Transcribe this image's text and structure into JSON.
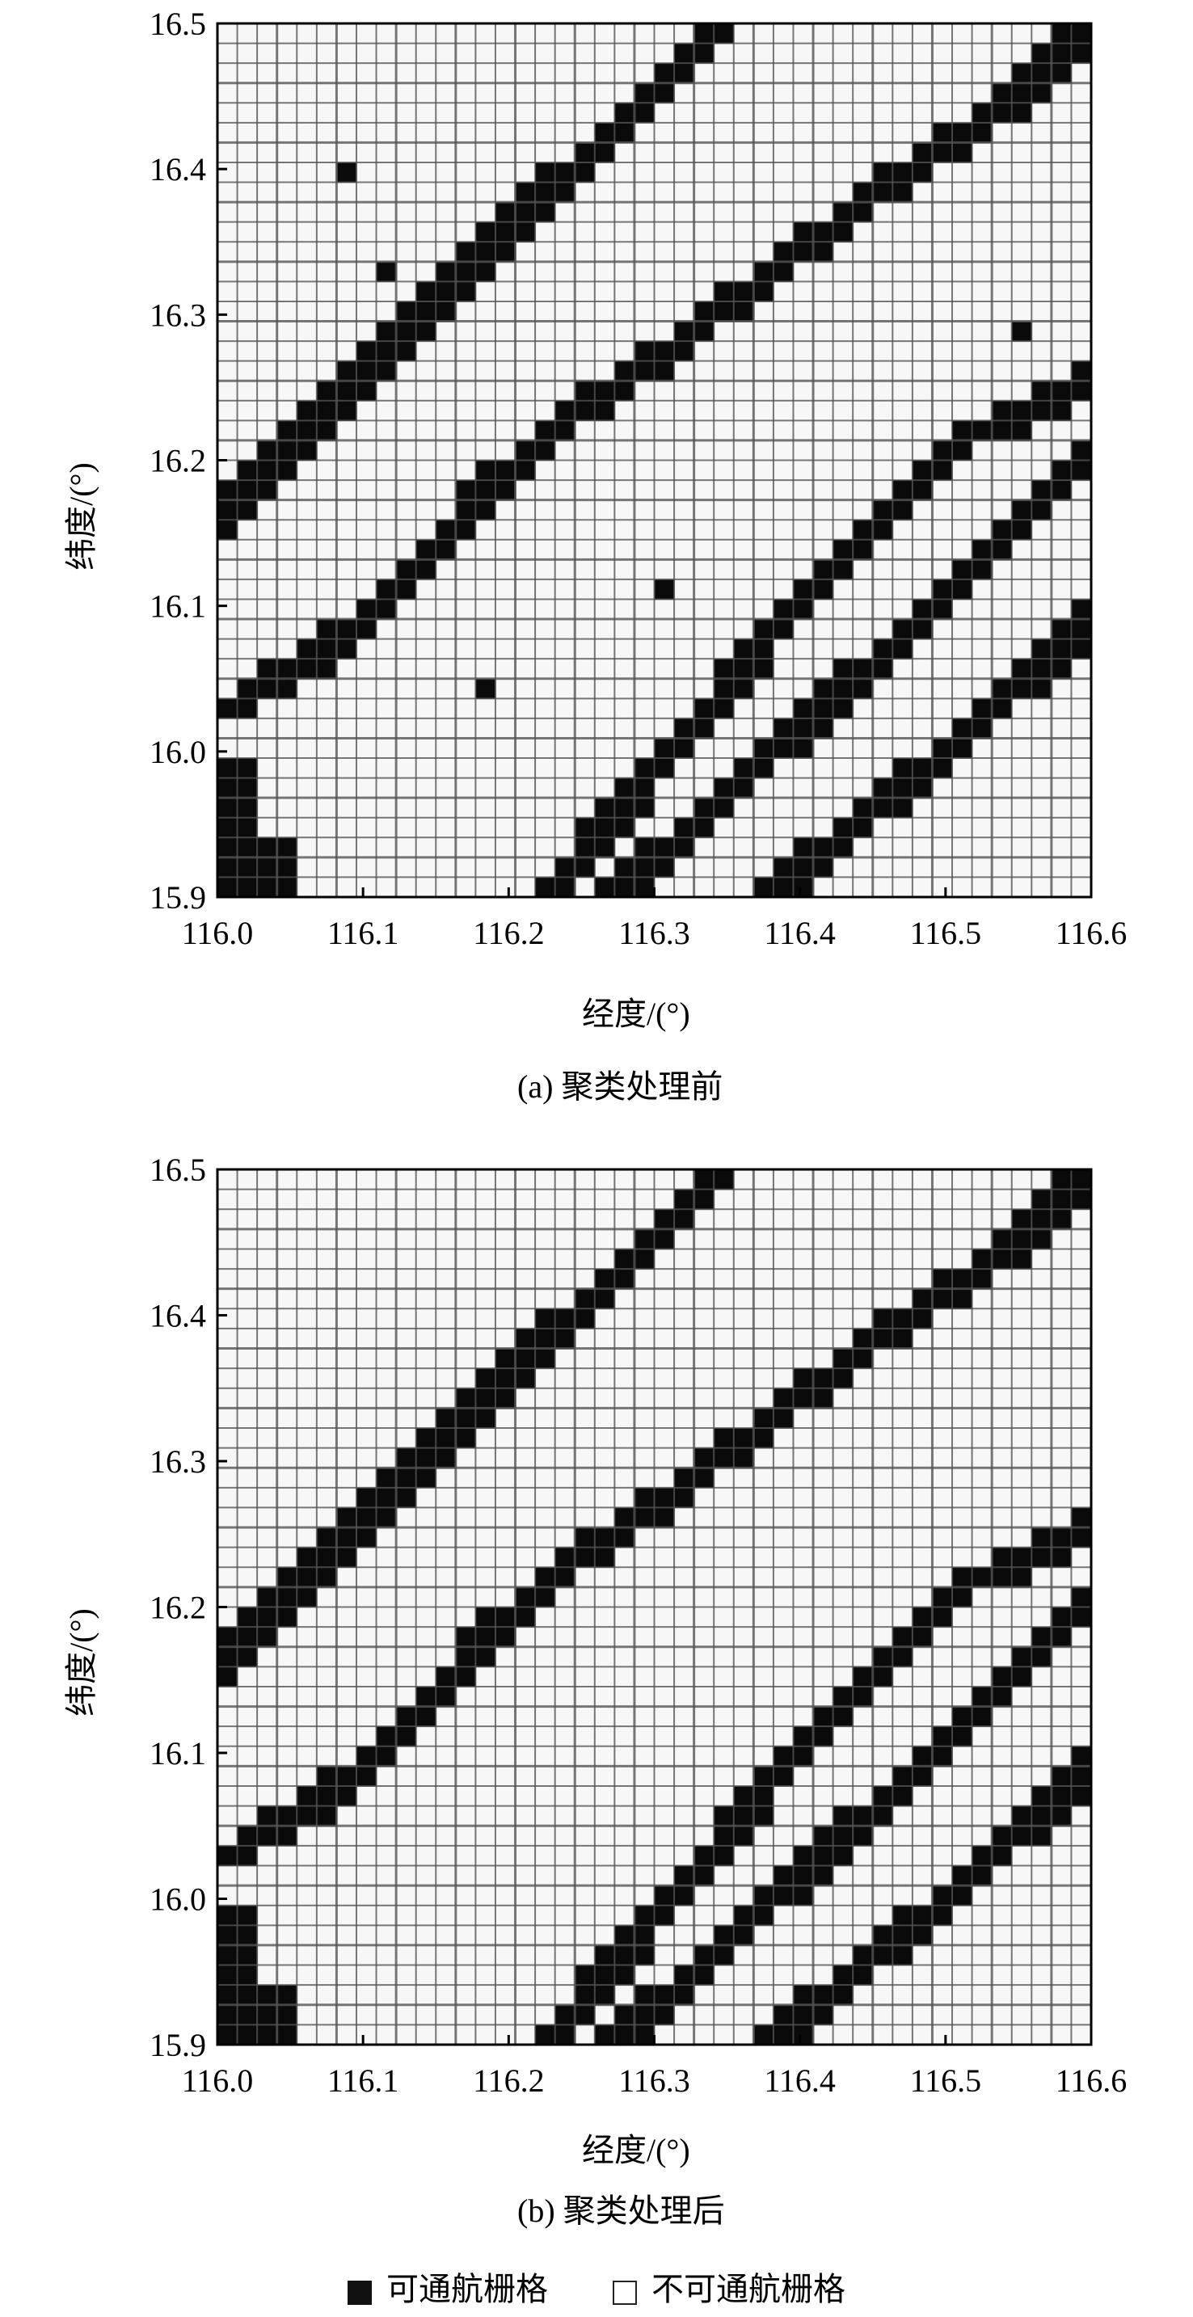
{
  "chart_data": [
    {
      "type": "heatmap",
      "caption": "(a) 聚类处理前",
      "xlabel": "经度/(°)",
      "ylabel": "纬度/(°)",
      "xlim": [
        116.0,
        116.6
      ],
      "ylim": [
        15.9,
        16.5
      ],
      "xticks": [
        "116.0",
        "116.1",
        "116.2",
        "116.3",
        "116.4",
        "116.5",
        "116.6"
      ],
      "yticks": [
        "15.9",
        "16.0",
        "16.1",
        "16.2",
        "16.3",
        "16.4",
        "16.5"
      ],
      "grid": true,
      "grid_cells": 44,
      "navigable_channels": [
        [
          [
            116.0,
            16.16
          ],
          [
            116.1,
            16.26
          ],
          [
            116.2,
            16.36
          ],
          [
            116.3,
            16.45
          ],
          [
            116.35,
            16.5
          ]
        ],
        [
          [
            116.013,
            16.03
          ],
          [
            116.105,
            16.09
          ],
          [
            116.186,
            16.18
          ],
          [
            116.257,
            16.24
          ],
          [
            116.358,
            16.31
          ],
          [
            116.46,
            16.39
          ],
          [
            116.55,
            16.45
          ],
          [
            116.6,
            16.5
          ]
        ],
        [
          [
            116.226,
            15.9
          ],
          [
            116.39,
            16.09
          ],
          [
            116.52,
            16.22
          ],
          [
            116.55,
            16.225
          ],
          [
            116.6,
            16.257
          ]
        ],
        [
          [
            116.272,
            15.9
          ],
          [
            116.45,
            16.06
          ],
          [
            116.6,
            16.21
          ]
        ],
        [
          [
            116.379,
            15.9
          ],
          [
            116.45,
            15.96
          ],
          [
            116.5,
            15.998
          ],
          [
            116.6,
            16.09
          ]
        ]
      ],
      "navigable_regions": [
        [
          116.0,
          15.9,
          116.03,
          16.0
        ],
        [
          116.03,
          15.9,
          116.06,
          15.94
        ]
      ],
      "isolated_navigable_cells": [
        [
          116.082,
          16.404
        ],
        [
          116.121,
          16.327
        ],
        [
          116.308,
          16.117
        ],
        [
          116.188,
          16.042
        ],
        [
          116.549,
          16.283
        ]
      ],
      "colors": {
        "navigable": "#0a0a0a",
        "non_navigable": "#f7f7f7",
        "grid": "#555555"
      }
    },
    {
      "type": "heatmap",
      "caption": "(b) 聚类处理后",
      "xlabel": "经度/(°)",
      "ylabel": "纬度/(°)",
      "xlim": [
        116.0,
        116.6
      ],
      "ylim": [
        15.9,
        16.5
      ],
      "xticks": [
        "116.0",
        "116.1",
        "116.2",
        "116.3",
        "116.4",
        "116.5",
        "116.6"
      ],
      "yticks": [
        "15.9",
        "16.0",
        "16.1",
        "16.2",
        "16.3",
        "16.4",
        "16.5"
      ],
      "grid": true,
      "grid_cells": 44,
      "navigable_channels": [
        [
          [
            116.0,
            16.16
          ],
          [
            116.1,
            16.26
          ],
          [
            116.2,
            16.36
          ],
          [
            116.3,
            16.45
          ],
          [
            116.35,
            16.5
          ]
        ],
        [
          [
            116.013,
            16.03
          ],
          [
            116.105,
            16.09
          ],
          [
            116.186,
            16.18
          ],
          [
            116.257,
            16.24
          ],
          [
            116.358,
            16.31
          ],
          [
            116.46,
            16.39
          ],
          [
            116.55,
            16.45
          ],
          [
            116.6,
            16.5
          ]
        ],
        [
          [
            116.226,
            15.9
          ],
          [
            116.39,
            16.09
          ],
          [
            116.52,
            16.22
          ],
          [
            116.55,
            16.225
          ],
          [
            116.6,
            16.257
          ]
        ],
        [
          [
            116.272,
            15.9
          ],
          [
            116.45,
            16.06
          ],
          [
            116.6,
            16.21
          ]
        ],
        [
          [
            116.379,
            15.9
          ],
          [
            116.45,
            15.96
          ],
          [
            116.5,
            15.998
          ],
          [
            116.6,
            16.09
          ]
        ]
      ],
      "navigable_regions": [
        [
          116.0,
          15.9,
          116.03,
          16.0
        ],
        [
          116.03,
          15.9,
          116.06,
          15.94
        ]
      ],
      "isolated_navigable_cells": [],
      "colors": {
        "navigable": "#0a0a0a",
        "non_navigable": "#f7f7f7",
        "grid": "#555555"
      }
    }
  ],
  "legend": {
    "navigable_label": "可通航栅格",
    "non_navigable_label": "不可通航栅格"
  }
}
